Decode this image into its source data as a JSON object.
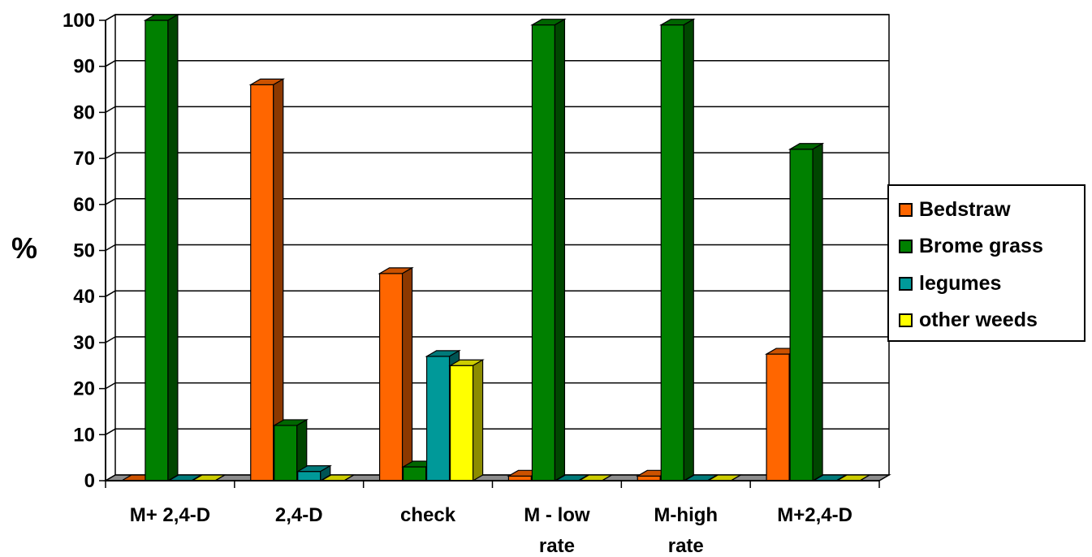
{
  "chart_data": {
    "type": "bar",
    "title": "",
    "xlabel": "",
    "ylabel": "%",
    "ylim": [
      0,
      100
    ],
    "yticks": [
      0,
      10,
      20,
      30,
      40,
      50,
      60,
      70,
      80,
      90,
      100
    ],
    "grid": true,
    "legend_position": "right",
    "categories": [
      "M+ 2,4-D",
      "2,4-D",
      "check",
      "M - low rate",
      "M-high rate",
      "M+2,4-D"
    ],
    "series": [
      {
        "name": "Bedstraw",
        "color": "#FF6600",
        "values": [
          0,
          86,
          45,
          1,
          1,
          27.5
        ]
      },
      {
        "name": "Brome grass",
        "color": "#008000",
        "values": [
          100,
          12,
          3,
          99,
          99,
          72
        ]
      },
      {
        "name": "legumes",
        "color": "#009999",
        "values": [
          0,
          2,
          27,
          0,
          0,
          0
        ]
      },
      {
        "name": "other weeds",
        "color": "#FFFF00",
        "values": [
          0,
          0,
          25,
          0,
          0,
          0
        ]
      }
    ]
  }
}
